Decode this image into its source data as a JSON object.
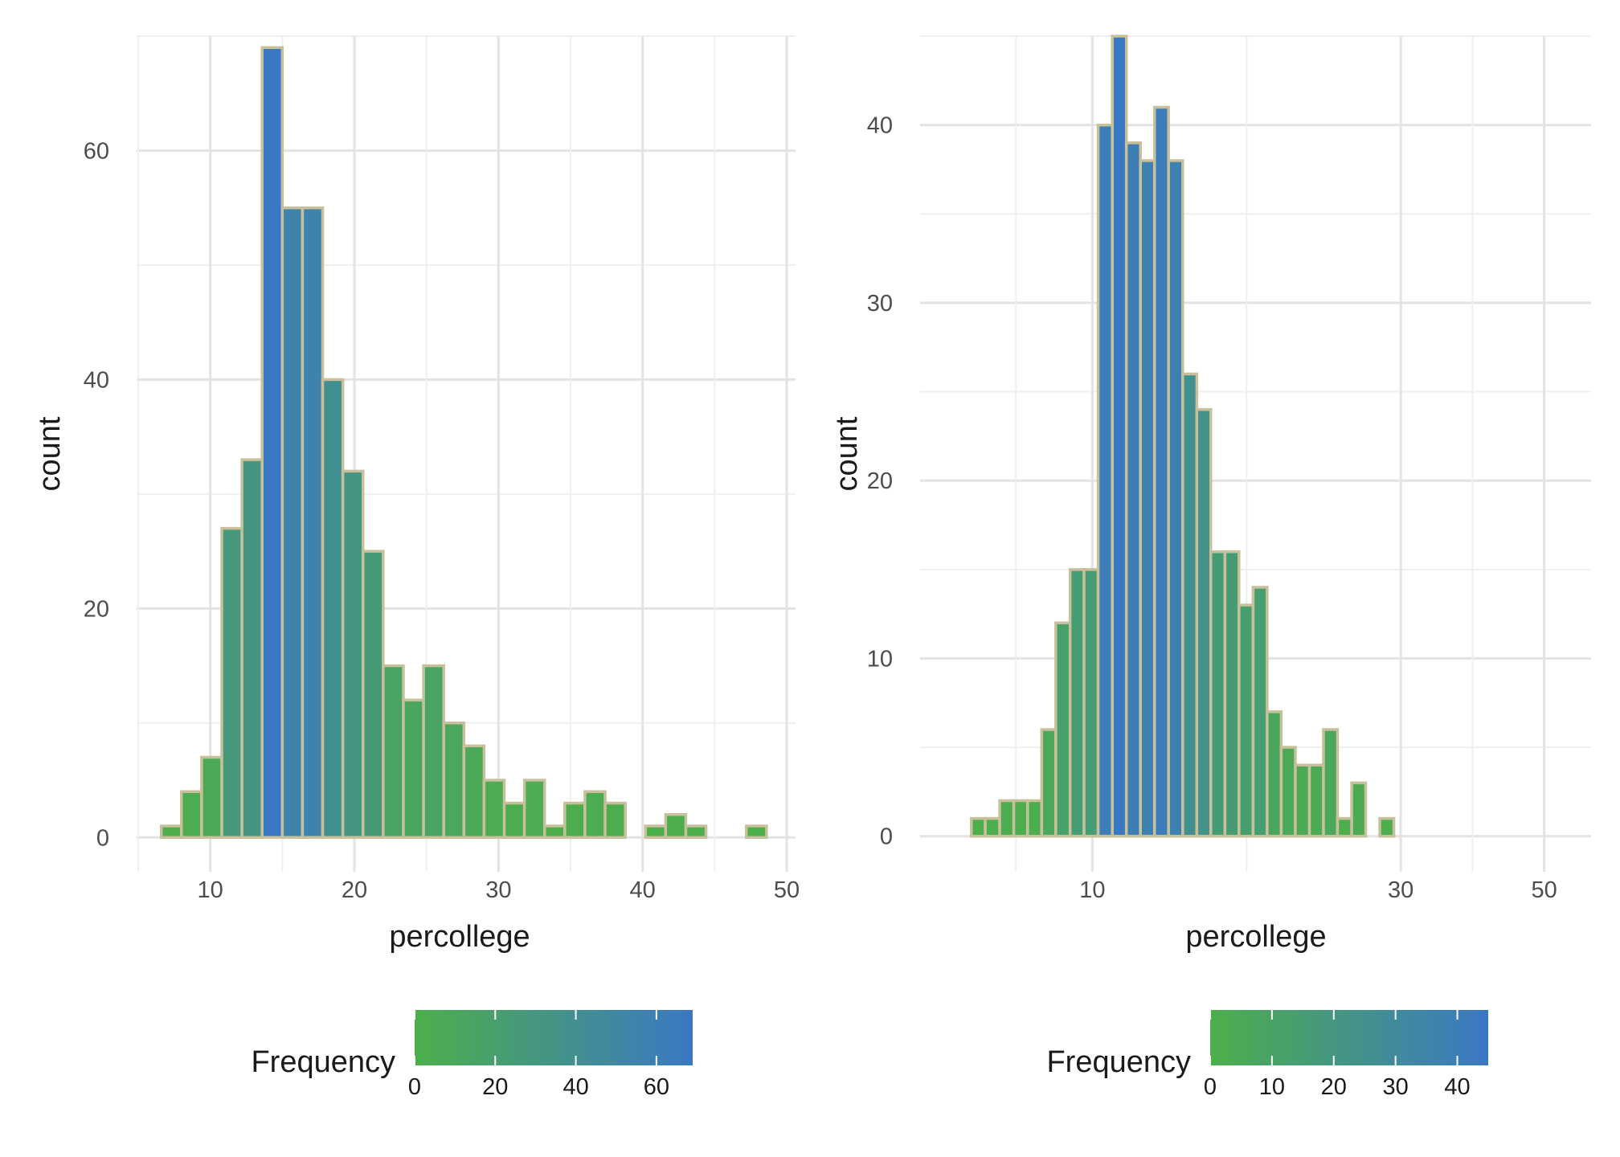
{
  "colors": {
    "low": "#4daf4a",
    "high": "#3a78c4",
    "bar_outline": "#c8c09a",
    "grid_major": "#e3e3e3",
    "grid_minor": "#efefef",
    "background": "#ffffff"
  },
  "chart_data": [
    {
      "type": "bar",
      "title": "",
      "xlabel": "percollege",
      "ylabel": "count",
      "x_scale": "linear",
      "xlim": [
        5,
        50
      ],
      "ylim": [
        -3,
        70
      ],
      "grid": true,
      "legend_placement": "bottom",
      "x_ticks": [
        10,
        20,
        30,
        40,
        50
      ],
      "x_tick_labels": [
        "10",
        "20",
        "30",
        "40",
        "50"
      ],
      "y_ticks": [
        0,
        20,
        40,
        60
      ],
      "y_tick_labels": [
        "0",
        "20",
        "40",
        "60"
      ],
      "bins": [
        {
          "x0": 6.6,
          "x1": 8.0,
          "count": 1
        },
        {
          "x0": 8.0,
          "x1": 9.4,
          "count": 4
        },
        {
          "x0": 9.4,
          "x1": 10.8,
          "count": 7
        },
        {
          "x0": 10.8,
          "x1": 12.2,
          "count": 27
        },
        {
          "x0": 12.2,
          "x1": 13.6,
          "count": 33
        },
        {
          "x0": 13.6,
          "x1": 15.0,
          "count": 69
        },
        {
          "x0": 15.0,
          "x1": 16.4,
          "count": 55
        },
        {
          "x0": 16.4,
          "x1": 17.8,
          "count": 55
        },
        {
          "x0": 17.8,
          "x1": 19.2,
          "count": 40
        },
        {
          "x0": 19.2,
          "x1": 20.6,
          "count": 32
        },
        {
          "x0": 20.6,
          "x1": 22.0,
          "count": 25
        },
        {
          "x0": 22.0,
          "x1": 23.4,
          "count": 15
        },
        {
          "x0": 23.4,
          "x1": 24.8,
          "count": 12
        },
        {
          "x0": 24.8,
          "x1": 26.2,
          "count": 15
        },
        {
          "x0": 26.2,
          "x1": 27.6,
          "count": 10
        },
        {
          "x0": 27.6,
          "x1": 29.0,
          "count": 8
        },
        {
          "x0": 29.0,
          "x1": 30.4,
          "count": 5
        },
        {
          "x0": 30.4,
          "x1": 31.8,
          "count": 3
        },
        {
          "x0": 31.8,
          "x1": 33.2,
          "count": 5
        },
        {
          "x0": 33.2,
          "x1": 34.6,
          "count": 1
        },
        {
          "x0": 34.6,
          "x1": 36.0,
          "count": 3
        },
        {
          "x0": 36.0,
          "x1": 37.4,
          "count": 4
        },
        {
          "x0": 37.4,
          "x1": 38.8,
          "count": 3
        },
        {
          "x0": 38.8,
          "x1": 40.2,
          "count": 0
        },
        {
          "x0": 40.2,
          "x1": 41.6,
          "count": 1
        },
        {
          "x0": 41.6,
          "x1": 43.0,
          "count": 2
        },
        {
          "x0": 43.0,
          "x1": 44.4,
          "count": 1
        },
        {
          "x0": 44.4,
          "x1": 45.8,
          "count": 0
        },
        {
          "x0": 45.8,
          "x1": 47.2,
          "count": 0
        },
        {
          "x0": 47.2,
          "x1": 48.6,
          "count": 1
        }
      ],
      "legend": {
        "title": "Frequency",
        "range": [
          0,
          69
        ],
        "ticks": [
          0,
          20,
          40,
          60
        ],
        "tick_labels": [
          "0",
          "20",
          "40",
          "60"
        ]
      }
    },
    {
      "type": "bar",
      "title": "",
      "xlabel": "percollege",
      "ylabel": "count",
      "x_scale": "log10",
      "xlim": [
        5.8,
        53
      ],
      "ylim": [
        -2,
        45
      ],
      "grid": true,
      "legend_placement": "bottom",
      "x_ticks": [
        10,
        30,
        50
      ],
      "x_tick_labels": [
        "10",
        "30",
        "50"
      ],
      "y_ticks": [
        0,
        10,
        20,
        30,
        40
      ],
      "y_tick_labels": [
        "0",
        "10",
        "20",
        "30",
        "40"
      ],
      "bins": [
        {
          "x0": 6.5,
          "x1": 6.83,
          "count": 1
        },
        {
          "x0": 6.83,
          "x1": 7.19,
          "count": 1
        },
        {
          "x0": 7.19,
          "x1": 7.56,
          "count": 2
        },
        {
          "x0": 7.56,
          "x1": 7.94,
          "count": 2
        },
        {
          "x0": 7.94,
          "x1": 8.35,
          "count": 2
        },
        {
          "x0": 8.35,
          "x1": 8.78,
          "count": 6
        },
        {
          "x0": 8.78,
          "x1": 9.24,
          "count": 12
        },
        {
          "x0": 9.24,
          "x1": 9.71,
          "count": 15
        },
        {
          "x0": 9.71,
          "x1": 10.21,
          "count": 15
        },
        {
          "x0": 10.21,
          "x1": 10.74,
          "count": 40
        },
        {
          "x0": 10.74,
          "x1": 11.29,
          "count": 45
        },
        {
          "x0": 11.29,
          "x1": 11.87,
          "count": 39
        },
        {
          "x0": 11.87,
          "x1": 12.48,
          "count": 38
        },
        {
          "x0": 12.48,
          "x1": 13.12,
          "count": 41
        },
        {
          "x0": 13.12,
          "x1": 13.8,
          "count": 38
        },
        {
          "x0": 13.8,
          "x1": 14.51,
          "count": 26
        },
        {
          "x0": 14.51,
          "x1": 15.25,
          "count": 24
        },
        {
          "x0": 15.25,
          "x1": 16.04,
          "count": 16
        },
        {
          "x0": 16.04,
          "x1": 16.86,
          "count": 16
        },
        {
          "x0": 16.86,
          "x1": 17.73,
          "count": 13
        },
        {
          "x0": 17.73,
          "x1": 18.64,
          "count": 14
        },
        {
          "x0": 18.64,
          "x1": 19.6,
          "count": 7
        },
        {
          "x0": 19.6,
          "x1": 20.61,
          "count": 5
        },
        {
          "x0": 20.61,
          "x1": 21.67,
          "count": 4
        },
        {
          "x0": 21.67,
          "x1": 22.78,
          "count": 4
        },
        {
          "x0": 22.78,
          "x1": 23.95,
          "count": 6
        },
        {
          "x0": 23.95,
          "x1": 25.19,
          "count": 1
        },
        {
          "x0": 25.19,
          "x1": 26.48,
          "count": 3
        },
        {
          "x0": 26.48,
          "x1": 27.84,
          "count": 0
        },
        {
          "x0": 27.84,
          "x1": 29.27,
          "count": 1
        }
      ],
      "legend": {
        "title": "Frequency",
        "range": [
          0,
          45
        ],
        "ticks": [
          0,
          10,
          20,
          30,
          40
        ],
        "tick_labels": [
          "0",
          "10",
          "20",
          "30",
          "40"
        ]
      }
    }
  ]
}
